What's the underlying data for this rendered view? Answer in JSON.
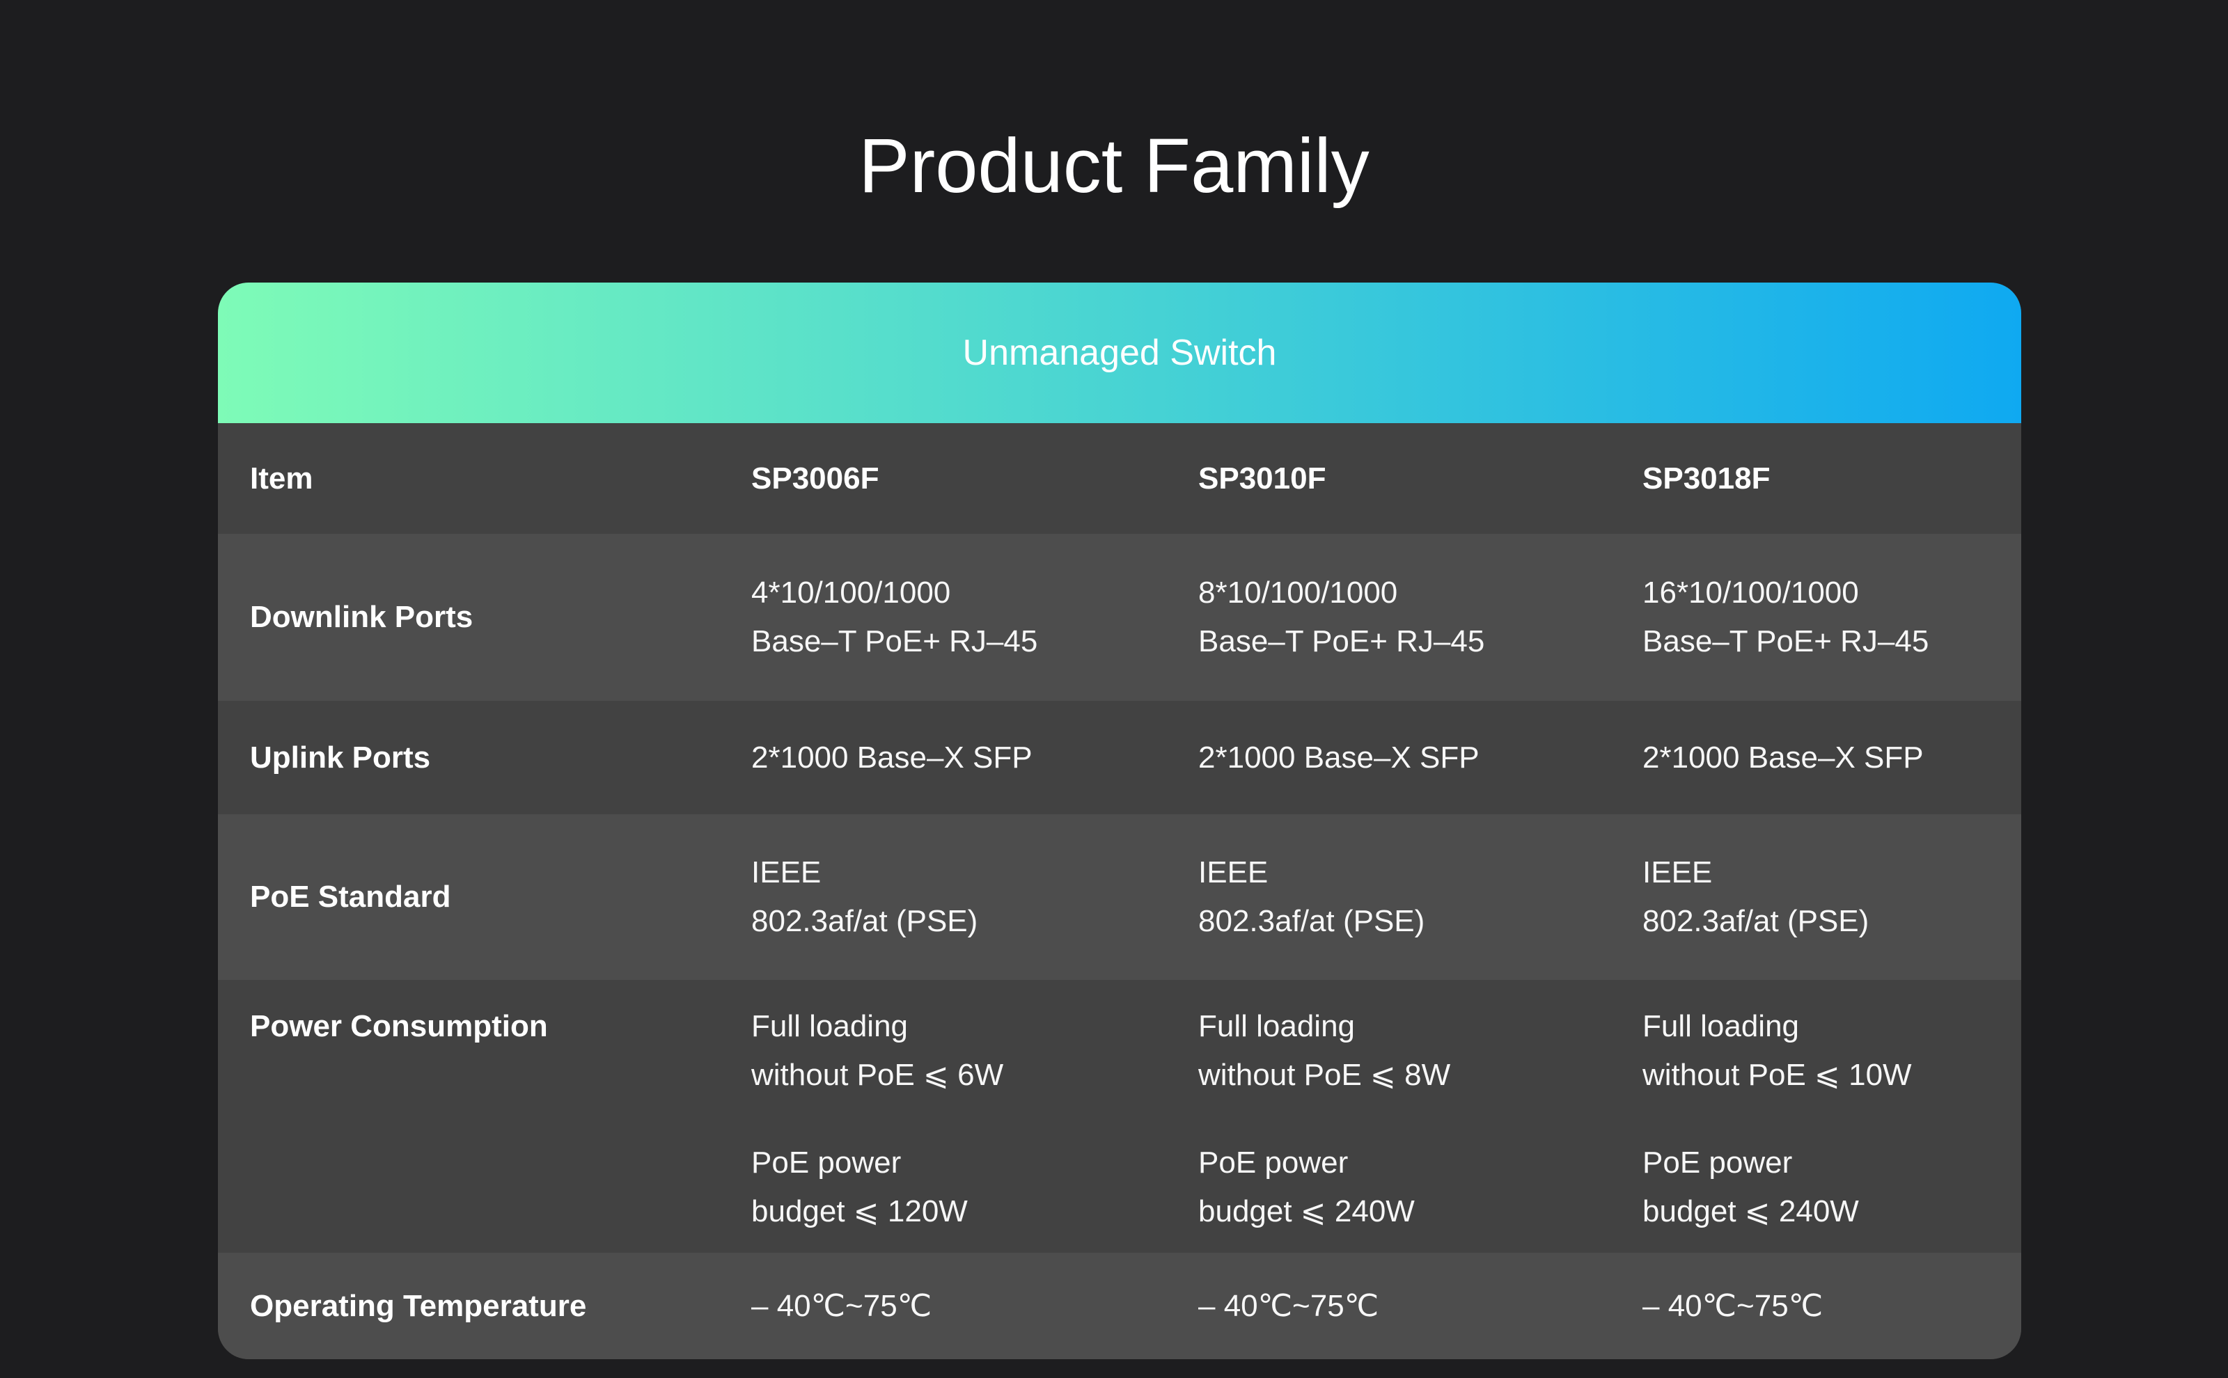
{
  "page": {
    "title": "Product Family",
    "background_color": "#1d1d1f",
    "text_color": "#ffffff"
  },
  "card": {
    "header": {
      "label": "Unmanaged Switch",
      "gradient_start_color": "#7efbb7",
      "gradient_end_color": "#0fa9f1"
    },
    "row_dark_color": "#424242",
    "row_light_color": "#4d4d4d",
    "columns": [
      "Item",
      "SP3006F",
      "SP3010F",
      "SP3018F"
    ],
    "rows": [
      {
        "label": "Downlink Ports",
        "cells": [
          [
            [
              "4*10/100/1000",
              "Base–T PoE+ RJ–45"
            ]
          ],
          [
            [
              "8*10/100/1000",
              "Base–T PoE+ RJ–45"
            ]
          ],
          [
            [
              "16*10/100/1000",
              "Base–T PoE+ RJ–45"
            ]
          ]
        ]
      },
      {
        "label": "Uplink Ports",
        "cells": [
          [
            [
              "2*1000 Base–X SFP"
            ]
          ],
          [
            [
              "2*1000 Base–X SFP"
            ]
          ],
          [
            [
              "2*1000 Base–X SFP"
            ]
          ]
        ]
      },
      {
        "label": "PoE Standard",
        "cells": [
          [
            [
              "IEEE",
              "802.3af/at (PSE)"
            ]
          ],
          [
            [
              "IEEE",
              "802.3af/at (PSE)"
            ]
          ],
          [
            [
              "IEEE",
              "802.3af/at (PSE)"
            ]
          ]
        ]
      },
      {
        "label": "Power Consumption",
        "cells": [
          [
            [
              "Full loading",
              "without PoE ⩽ 6W"
            ],
            [
              "PoE power",
              "budget ⩽ 120W"
            ]
          ],
          [
            [
              "Full loading",
              "without PoE ⩽ 8W"
            ],
            [
              "PoE power",
              "budget ⩽ 240W"
            ]
          ],
          [
            [
              "Full loading",
              "without PoE ⩽ 10W"
            ],
            [
              "PoE power",
              "budget ⩽ 240W"
            ]
          ]
        ]
      },
      {
        "label": "Operating Temperature",
        "cells": [
          [
            [
              "– 40℃~75℃"
            ]
          ],
          [
            [
              "– 40℃~75℃"
            ]
          ],
          [
            [
              "– 40℃~75℃"
            ]
          ]
        ]
      }
    ]
  }
}
